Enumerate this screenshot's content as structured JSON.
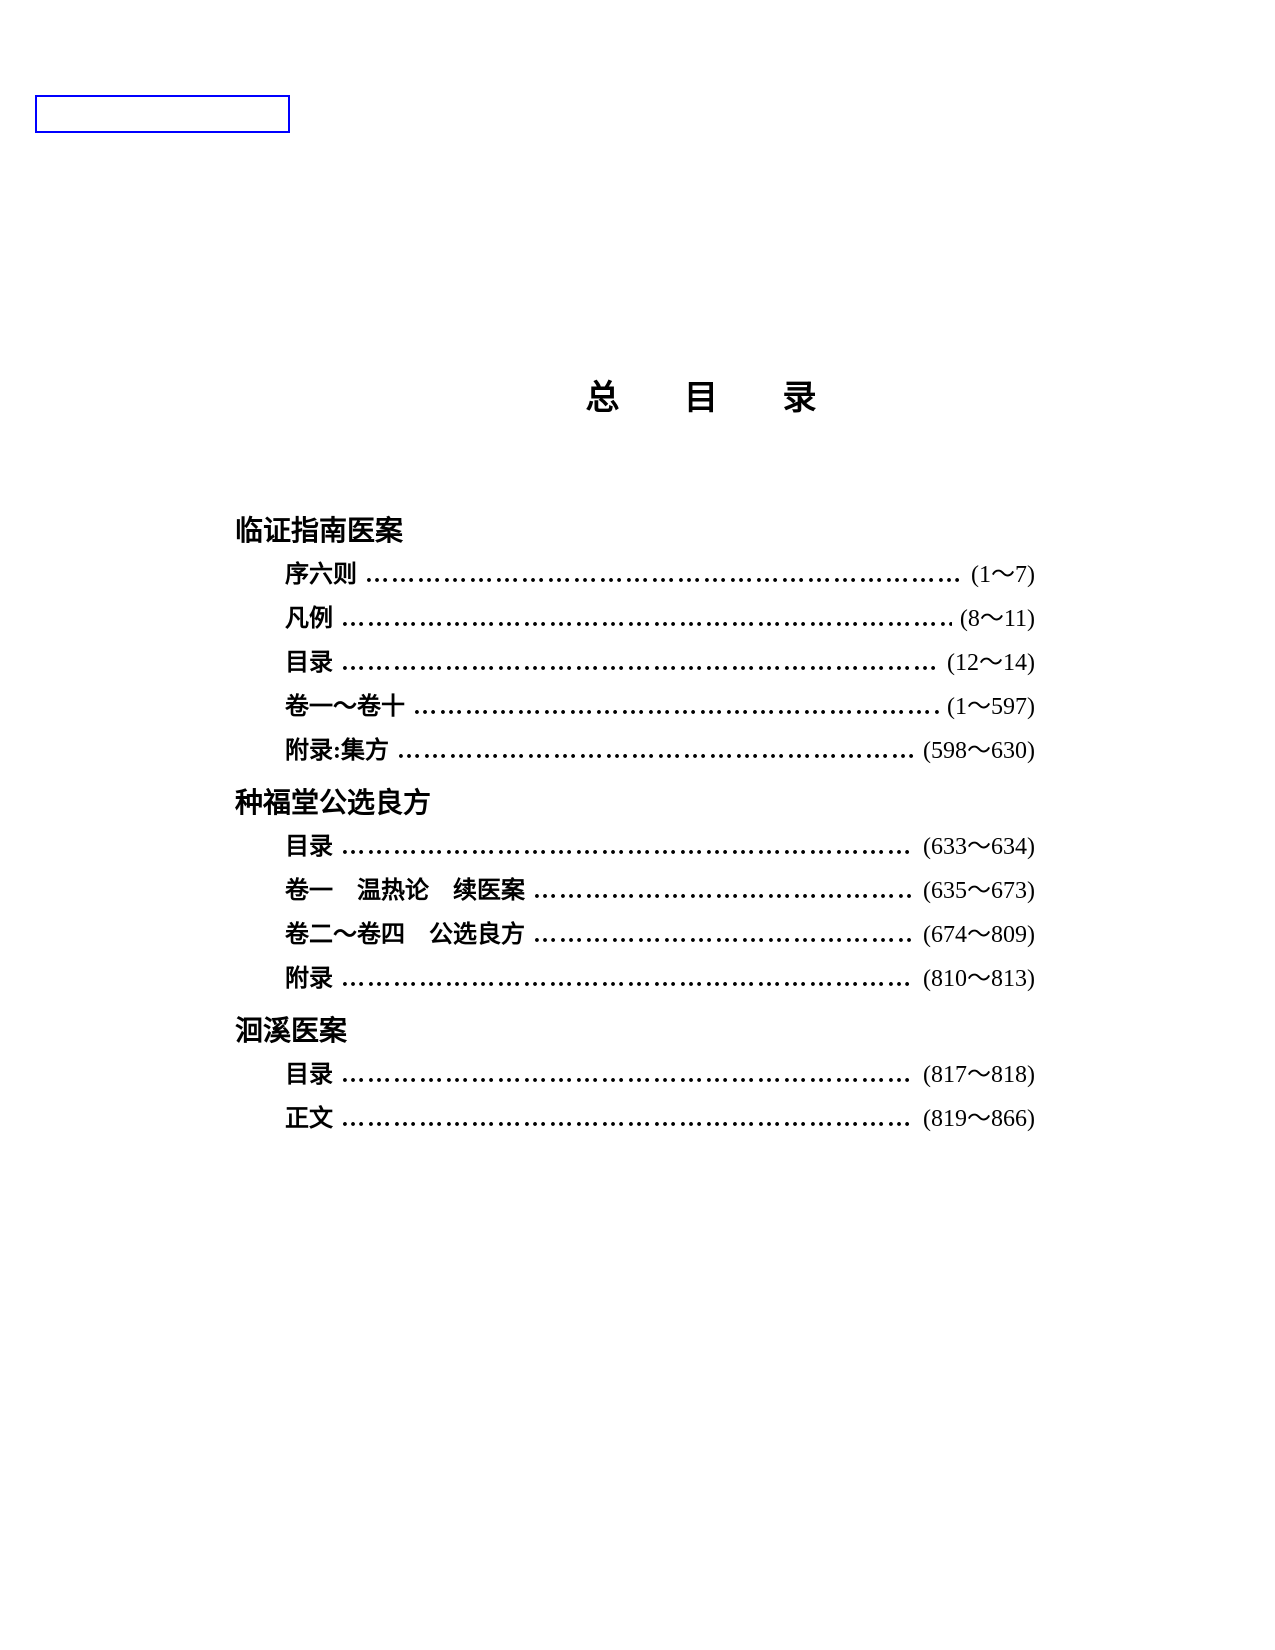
{
  "page_title": "总 目 录",
  "box_border_color": "#0000ff",
  "text_color": "#000000",
  "background_color": "#ffffff",
  "title_fontsize": 34,
  "section_fontsize": 28,
  "entry_fontsize": 24,
  "sections": [
    {
      "title": "临证指南医案",
      "entries": [
        {
          "label": "序六则",
          "pages": "(1～7)"
        },
        {
          "label": "凡例",
          "pages": "(8～11)"
        },
        {
          "label": "目录",
          "pages": "(12～14)"
        },
        {
          "label": "卷一～卷十",
          "pages": "(1～597)"
        },
        {
          "label": "附录:集方",
          "pages": "(598～630)"
        }
      ]
    },
    {
      "title": "种福堂公选良方",
      "entries": [
        {
          "label": "目录",
          "pages": "(633～634)"
        },
        {
          "label": "卷一　温热论　续医案",
          "pages": "(635～673)"
        },
        {
          "label": "卷二～卷四　公选良方",
          "pages": "(674～809)"
        },
        {
          "label": "附录",
          "pages": "(810～813)"
        }
      ]
    },
    {
      "title": "洄溪医案",
      "entries": [
        {
          "label": "目录",
          "pages": "(817～818)"
        },
        {
          "label": "正文",
          "pages": "(819～866)"
        }
      ]
    }
  ],
  "dots": "…………………………………………………………………………"
}
